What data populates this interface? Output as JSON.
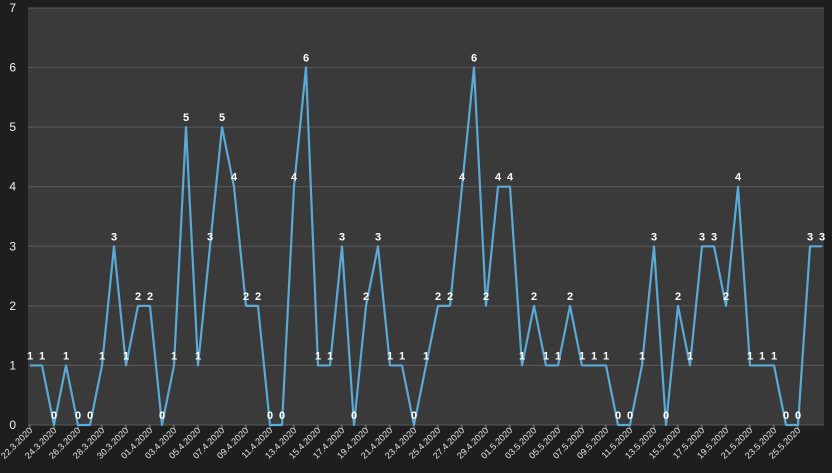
{
  "chart_data": {
    "type": "line",
    "x": [
      "22.3.2020",
      "23.3.2020",
      "24.3.2020",
      "25.3.2020",
      "26.3.2020",
      "27.3.2020",
      "28.3.2020",
      "29.3.2020",
      "30.3.2020",
      "31.3.2020",
      "01.4.2020",
      "02.4.2020",
      "03.4.2020",
      "04.4.2020",
      "05.4.2020",
      "06.4.2020",
      "07.4.2020",
      "08.4.2020",
      "09.4.2020",
      "10.4.2020",
      "11.4.2020",
      "12.4.2020",
      "13.4.2020",
      "14.4.2020",
      "15.4.2020",
      "16.4.2020",
      "17.4.2020",
      "18.4.2020",
      "19.4.2020",
      "20.4.2020",
      "21.4.2020",
      "22.4.2020",
      "23.4.2020",
      "24.4.2020",
      "25.4.2020",
      "26.4.2020",
      "27.4.2020",
      "28.4.2020",
      "29.4.2020",
      "30.4.2020",
      "01.5.2020",
      "02.5.2020",
      "03.5.2020",
      "04.5.2020",
      "05.5.2020",
      "06.5.2020",
      "07.5.2020",
      "08.5.2020",
      "09.5.2020",
      "10.5.2020",
      "11.5.2020",
      "12.5.2020",
      "13.5.2020",
      "14.5.2020",
      "15.5.2020",
      "16.5.2020",
      "17.5.2020",
      "18.5.2020",
      "19.5.2020",
      "20.5.2020",
      "21.5.2020",
      "22.5.2020",
      "23.5.2020",
      "24.5.2020",
      "25.5.2020",
      "26.5.2020",
      "27.5.2020"
    ],
    "x_tick_labels": [
      "22.3.2020",
      "24.3.2020",
      "26.3.2020",
      "28.3.2020",
      "30.3.2020",
      "01.4.2020",
      "03.4.2020",
      "05.4.2020",
      "07.4.2020",
      "09.4.2020",
      "11.4.2020",
      "13.4.2020",
      "15.4.2020",
      "17.4.2020",
      "19.4.2020",
      "21.4.2020",
      "23.4.2020",
      "25.4.2020",
      "27.4.2020",
      "29.4.2020",
      "01.5.2020",
      "03.5.2020",
      "05.5.2020",
      "07.5.2020",
      "09.5.2020",
      "11.5.2020",
      "13.5.2020",
      "15.5.2020",
      "17.5.2020",
      "19.5.2020",
      "21.5.2020",
      "23.5.2020",
      "25.5.2020"
    ],
    "values": [
      1,
      1,
      0,
      1,
      0,
      0,
      1,
      3,
      1,
      2,
      2,
      0,
      1,
      5,
      1,
      3,
      5,
      4,
      2,
      2,
      0,
      0,
      4,
      6,
      1,
      1,
      3,
      0,
      2,
      3,
      1,
      1,
      0,
      1,
      2,
      2,
      4,
      6,
      2,
      4,
      4,
      1,
      2,
      1,
      1,
      2,
      1,
      1,
      1,
      0,
      0,
      1,
      3,
      0,
      2,
      1,
      3,
      3,
      2,
      4,
      1,
      1,
      1,
      0,
      0,
      3,
      3
    ],
    "ylim": [
      0,
      7
    ],
    "yticks": [
      0,
      1,
      2,
      3,
      4,
      5,
      6,
      7
    ],
    "grid": true,
    "data_labels": true,
    "colors": {
      "line": "#5aa9d6",
      "plot_bg": "#3a3a3a",
      "grid": "#5a5a5a",
      "page_bg": "#1e1e1e",
      "text": "#f2f2f2"
    }
  }
}
